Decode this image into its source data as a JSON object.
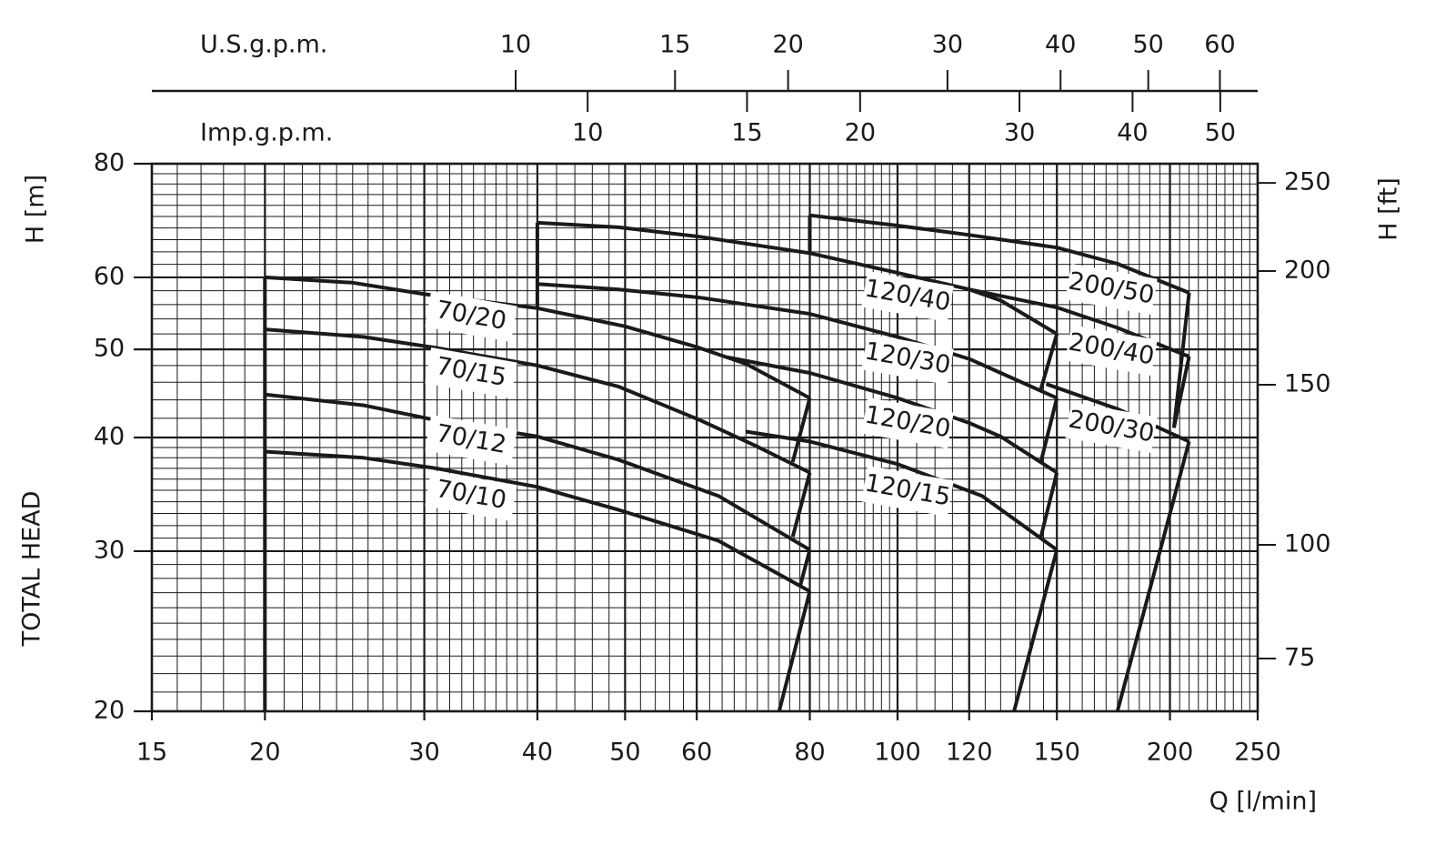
{
  "chart_data": {
    "type": "line",
    "xlabel": "Q [l/min]",
    "ylabel": "H [m]",
    "ylabel_extra": "TOTAL HEAD",
    "y2label": "H [ft]",
    "xscale": "log",
    "yscale": "log",
    "grid": true,
    "color": "#1a1a1a",
    "xlim": [
      15,
      250
    ],
    "xticks": [
      15,
      20,
      30,
      40,
      50,
      60,
      80,
      100,
      120,
      150,
      200,
      250
    ],
    "ylim": [
      20,
      80
    ],
    "yticks": [
      20,
      30,
      40,
      50,
      60,
      80
    ],
    "y2lim": [
      65.62,
      262.47
    ],
    "y2ticks": [
      75,
      100,
      150,
      200,
      250
    ],
    "top_axes": [
      {
        "label": "U.S.g.p.m.",
        "lim": [
          3.963,
          66.05
        ],
        "ticks": [
          10,
          15,
          20,
          30,
          40,
          50,
          60
        ]
      },
      {
        "label": "Imp.g.p.m.",
        "lim": [
          3.3,
          54.99
        ],
        "ticks": [
          10,
          15,
          20,
          30,
          40,
          50
        ]
      }
    ],
    "series": [
      {
        "name": "70/20",
        "x": [
          20,
          25,
          30,
          40,
          50,
          60,
          68,
          80
        ],
        "values": [
          60,
          59.2,
          57.5,
          55.5,
          53,
          50.3,
          48.2,
          44.2
        ]
      },
      {
        "name": "70/15",
        "x": [
          20,
          25.7,
          30.9,
          40,
          49.2,
          60.5,
          69.6,
          80
        ],
        "values": [
          52.6,
          51.6,
          50.2,
          48,
          45.5,
          41.8,
          39.2,
          36.6
        ]
      },
      {
        "name": "70/12",
        "x": [
          20,
          25.7,
          30.9,
          40,
          49.2,
          63.4,
          80
        ],
        "values": [
          44.6,
          43.4,
          41.8,
          40.1,
          37.8,
          34.5,
          30.1
        ]
      },
      {
        "name": "70/10",
        "x": [
          20,
          25.7,
          30.9,
          40,
          49.2,
          63.4,
          80
        ],
        "values": [
          38.6,
          38.0,
          37.0,
          35.3,
          33.3,
          30.8,
          27.1
        ]
      },
      {
        "name": "120/40",
        "x": [
          40,
          49.2,
          60.5,
          80,
          100,
          120,
          130,
          150
        ],
        "values": [
          68.9,
          68.1,
          66.5,
          63.8,
          60.7,
          58.2,
          56.6,
          52.0
        ]
      },
      {
        "name": "120/30",
        "x": [
          40,
          49.2,
          60.5,
          80,
          100,
          120,
          130,
          150
        ],
        "values": [
          59.0,
          58.2,
          57.0,
          54.7,
          51.6,
          48.8,
          47.1,
          44.2
        ]
      },
      {
        "name": "120/20",
        "x": [
          64.9,
          80,
          100,
          120,
          130,
          150
        ],
        "values": [
          49.0,
          47.1,
          44.2,
          41.5,
          40.1,
          36.6
        ]
      },
      {
        "name": "120/15",
        "x": [
          68,
          80,
          100,
          124,
          150
        ],
        "values": [
          40.6,
          39.6,
          37.4,
          34.5,
          30.1
        ]
      },
      {
        "name": "200/50",
        "x": [
          80,
          100,
          120,
          150,
          175,
          210
        ],
        "values": [
          70.2,
          68.4,
          66.8,
          64.7,
          62.1,
          57.7
        ]
      },
      {
        "name": "200/40",
        "x": [
          120,
          150,
          175,
          210
        ],
        "values": [
          58.2,
          55.6,
          52.8,
          49.1
        ]
      },
      {
        "name": "200/30",
        "x": [
          146,
          175,
          210
        ],
        "values": [
          45.8,
          43.0,
          39.6
        ]
      }
    ],
    "boundaries": [
      {
        "x": [
          20,
          20
        ],
        "values": [
          20,
          60
        ]
      },
      {
        "x": [
          40,
          40
        ],
        "values": [
          55.7,
          68.9
        ]
      },
      {
        "x": [
          80,
          80
        ],
        "values": [
          63.8,
          70.2
        ]
      },
      {
        "x": [
          80,
          76.6
        ],
        "values": [
          44.2,
          37.6
        ]
      },
      {
        "x": [
          80,
          76.6
        ],
        "values": [
          36.6,
          31.1
        ]
      },
      {
        "x": [
          80,
          78
        ],
        "values": [
          30.1,
          27.4
        ]
      },
      {
        "x": [
          80,
          74
        ],
        "values": [
          27.1,
          20
        ]
      },
      {
        "x": [
          150,
          144
        ],
        "values": [
          52.0,
          45.2
        ]
      },
      {
        "x": [
          150,
          144
        ],
        "values": [
          44.2,
          37.6
        ]
      },
      {
        "x": [
          150,
          144
        ],
        "values": [
          36.6,
          31.1
        ]
      },
      {
        "x": [
          150,
          134.5
        ],
        "values": [
          30.1,
          20
        ]
      },
      {
        "x": [
          210,
          202
        ],
        "values": [
          57.7,
          41.0
        ]
      },
      {
        "x": [
          210,
          202
        ],
        "values": [
          49.1,
          41.0
        ]
      },
      {
        "x": [
          210,
          175
        ],
        "values": [
          39.6,
          20
        ]
      }
    ]
  }
}
